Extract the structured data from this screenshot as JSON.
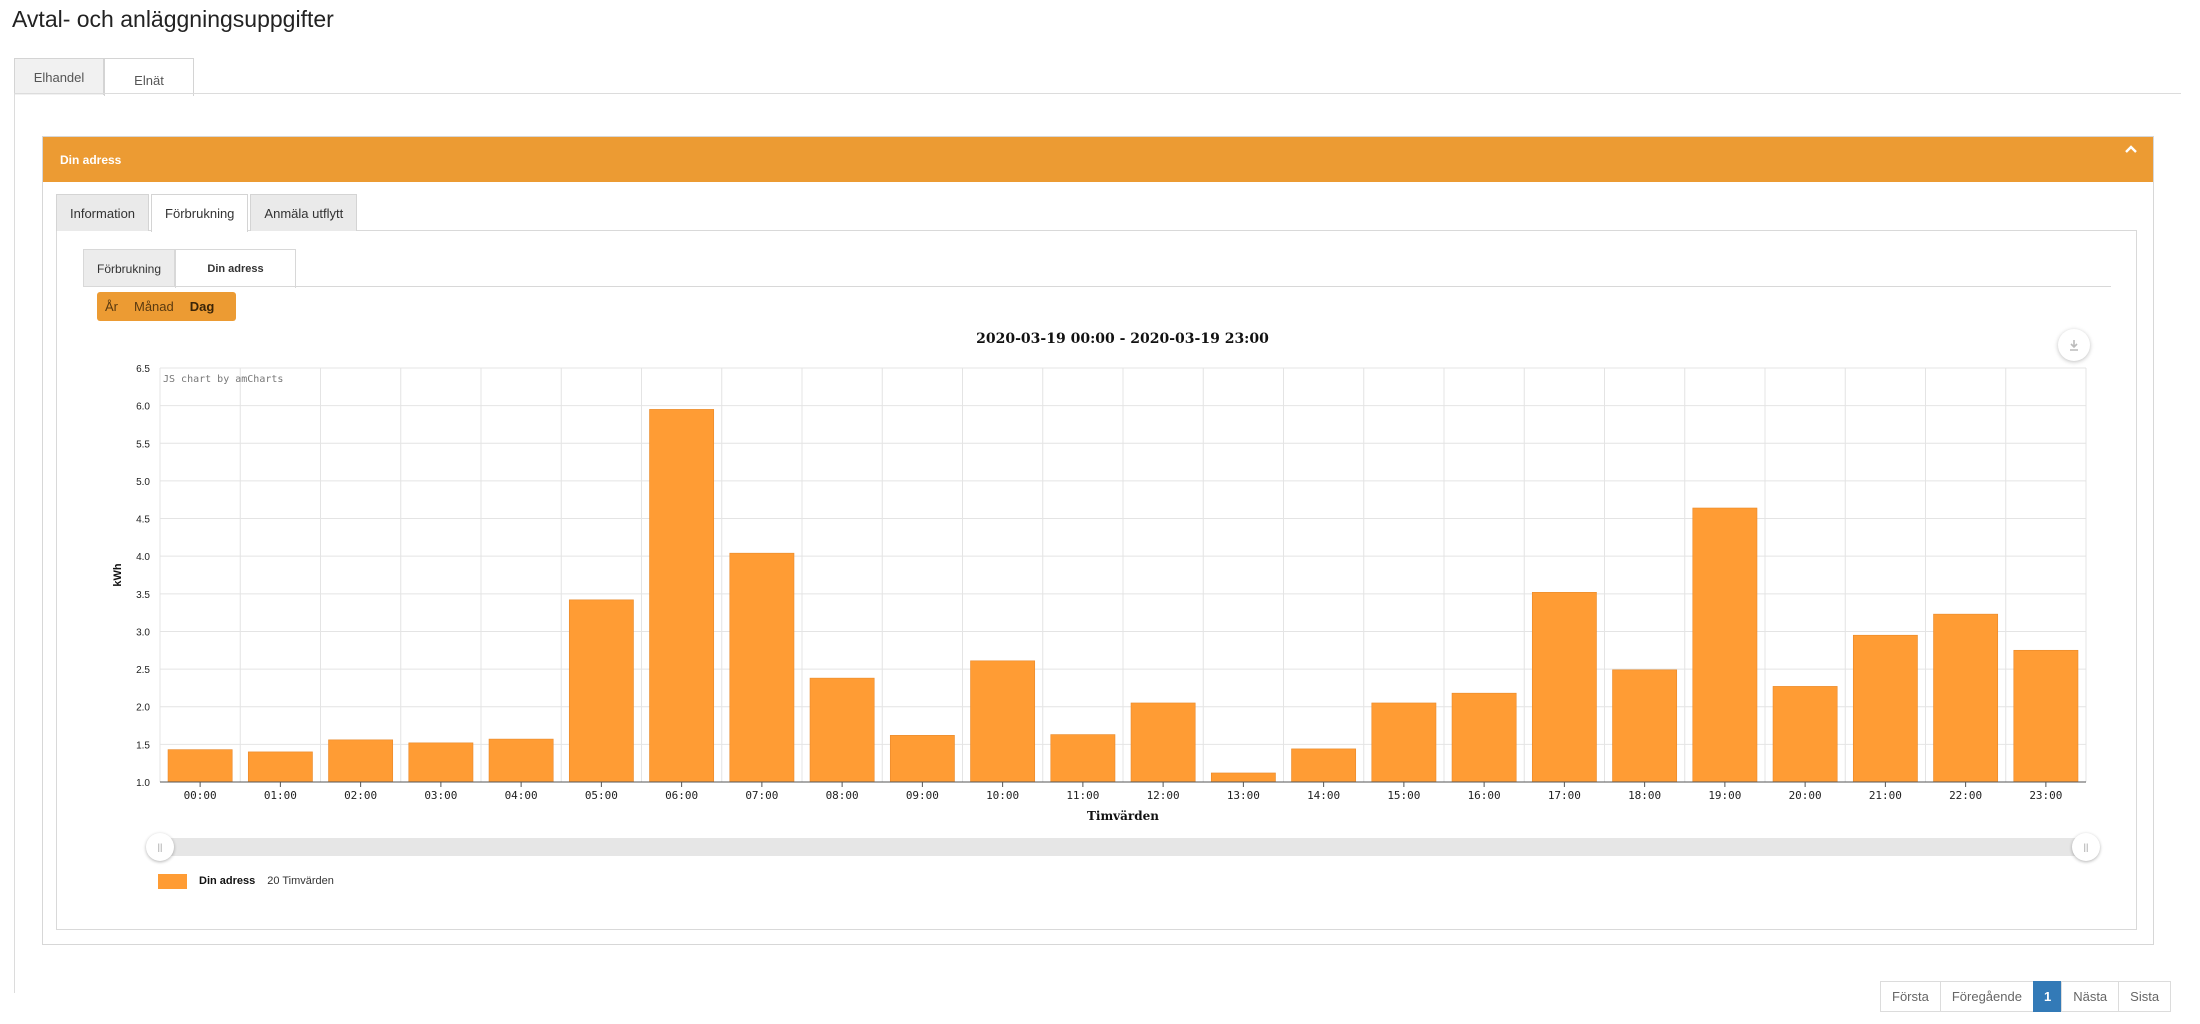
{
  "page": {
    "title": "Avtal- och anläggningsuppgifter"
  },
  "top_tabs": [
    {
      "label": "Elhandel"
    },
    {
      "label": "Elnät"
    }
  ],
  "card": {
    "header": "Din adress"
  },
  "inner_tabs": [
    {
      "label": "Information"
    },
    {
      "label": "Förbrukning"
    },
    {
      "label": "Anmäla utflytt"
    }
  ],
  "sub_tabs": [
    {
      "label": "Förbrukning"
    },
    {
      "label": "Din adress"
    }
  ],
  "period_buttons": [
    {
      "label": "År"
    },
    {
      "label": "Månad"
    },
    {
      "label": "Dag"
    }
  ],
  "colors": {
    "accent": "#ec9b33",
    "bar": "#ff9c34",
    "pager_active": "#337ab7"
  },
  "chart_data": {
    "type": "bar",
    "title": "2020-03-19 00:00 - 2020-03-19 23:00",
    "credit": "JS chart by amCharts",
    "xlabel": "Timvärden",
    "ylabel": "kWh",
    "ylim": [
      1.0,
      6.5
    ],
    "yticks": [
      "1.0",
      "1.5",
      "2.0",
      "2.5",
      "3.0",
      "3.5",
      "4.0",
      "4.5",
      "5.0",
      "5.5",
      "6.0",
      "6.5"
    ],
    "grid": true,
    "categories": [
      "00:00",
      "01:00",
      "02:00",
      "03:00",
      "04:00",
      "05:00",
      "06:00",
      "07:00",
      "08:00",
      "09:00",
      "10:00",
      "11:00",
      "12:00",
      "13:00",
      "14:00",
      "15:00",
      "16:00",
      "17:00",
      "18:00",
      "19:00",
      "20:00",
      "21:00",
      "22:00",
      "23:00"
    ],
    "series": [
      {
        "name": "Din adress",
        "values": [
          1.43,
          1.4,
          1.56,
          1.52,
          1.57,
          3.42,
          5.95,
          4.04,
          2.38,
          1.62,
          2.61,
          1.63,
          2.05,
          1.12,
          1.44,
          2.05,
          2.18,
          3.52,
          2.49,
          4.64,
          2.27,
          2.95,
          3.23,
          2.75
        ]
      }
    ],
    "legend": {
      "position": "bottom-left",
      "name": "Din adress",
      "value": "20 Timvärden"
    }
  },
  "pagination": {
    "first": "Första",
    "prev": "Föregående",
    "current": "1",
    "next": "Nästa",
    "last": "Sista"
  }
}
